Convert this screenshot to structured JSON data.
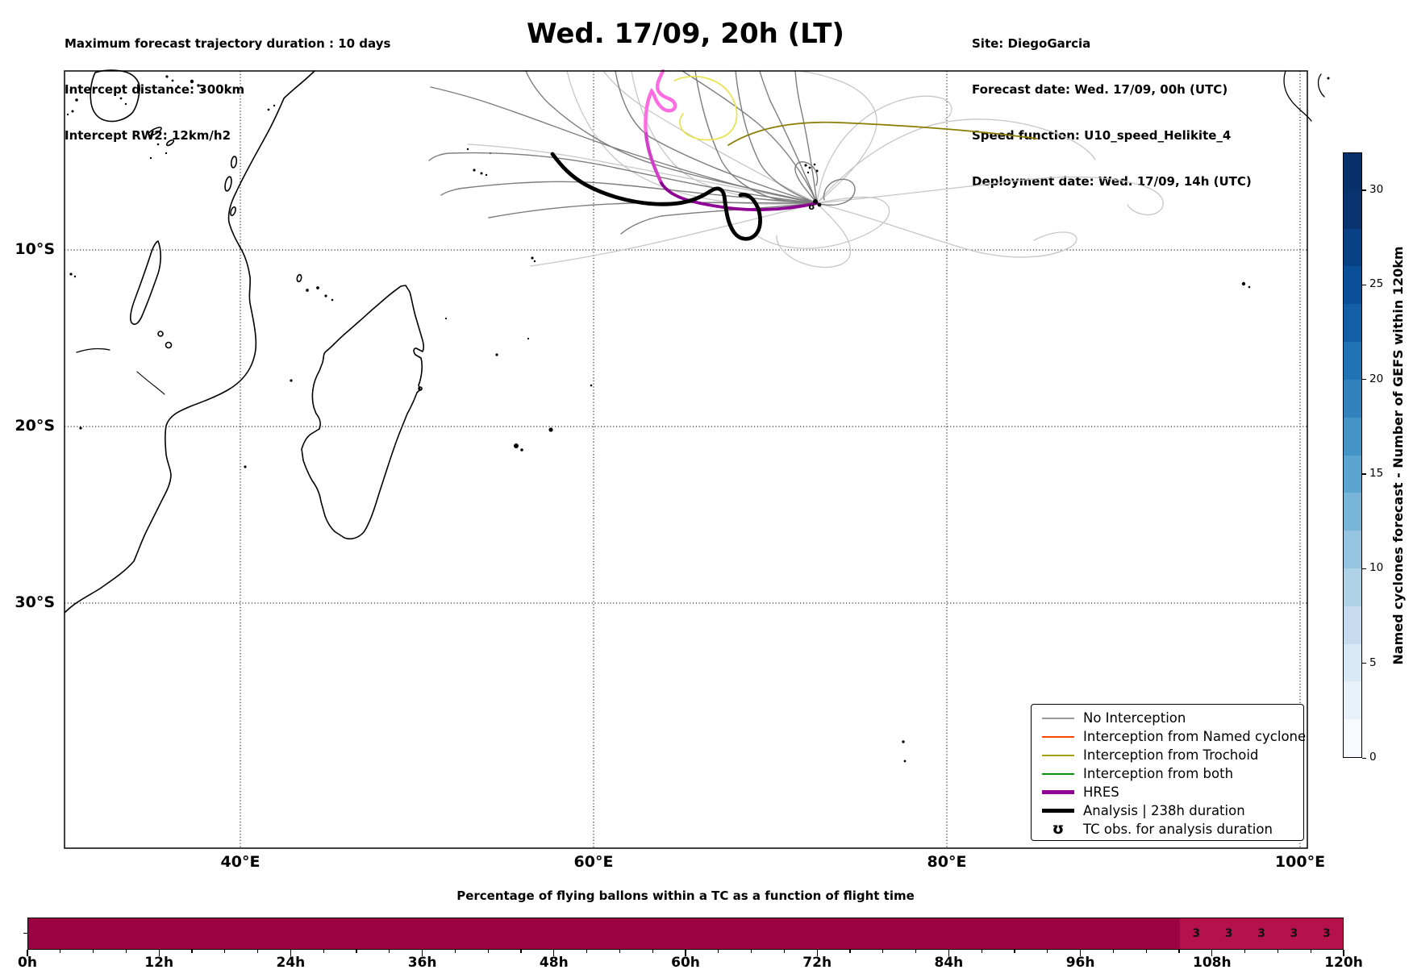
{
  "header": {
    "left_lines": [
      "Maximum forecast trajectory duration : 10 days",
      "Intercept distance: 300km",
      "Intercept RW2: 12km/h2"
    ],
    "title": "Wed. 17/09, 20h (LT)",
    "right_lines": [
      "Site: DiegoGarcia",
      "Forecast date: Wed. 17/09, 00h (UTC)",
      "Speed function: U10_speed_Helikite_4",
      "Deployment date: Wed. 17/09, 14h (UTC)"
    ]
  },
  "map": {
    "x_tick_labels": [
      "40°E",
      "60°E",
      "80°E",
      "100°E"
    ],
    "y_tick_labels": [
      "10°S",
      "20°S",
      "30°S"
    ],
    "legend": {
      "items": [
        {
          "label": "No Interception",
          "color": "#999999",
          "style": "thin"
        },
        {
          "label": "Interception from Named cyclone",
          "color": "#ff4500",
          "style": "thin"
        },
        {
          "label": "Interception from Trochoid",
          "color": "#a0a000",
          "style": "thin"
        },
        {
          "label": "Interception from both",
          "color": "#0a940a",
          "style": "thin"
        },
        {
          "label": "HRES",
          "color": "#8f0094",
          "style": "thick"
        },
        {
          "label": "Analysis | 238h duration",
          "color": "#000000",
          "style": "thick"
        },
        {
          "label": "TC obs. for analysis duration",
          "color": "#000000",
          "style": "glyph",
          "glyph": "ʊ"
        }
      ]
    },
    "trajectory_colors": {
      "no_interception_dark": "#7d7d7d",
      "no_interception_light": "#c6c6c6",
      "trochoid_yellow": "#e7e44c",
      "trochoid_olive": "#8a7c00",
      "hres_early": "#ff6ce1",
      "hres_mid": "#d23fc9",
      "hres_late": "#8f0094",
      "analysis": "#000000",
      "coast": "#000000"
    }
  },
  "colorbar": {
    "label": "Named cyclones forecast - Number of GEFS within 120km",
    "ticks": [
      0,
      5,
      10,
      15,
      20,
      25,
      30
    ],
    "vmin": 0,
    "vmax": 32,
    "segment_colors": [
      "#f7fbff",
      "#e8f1fa",
      "#d9e8f5",
      "#c6dbef",
      "#b0d2e7",
      "#94c4df",
      "#78b5d9",
      "#5da5d1",
      "#4594c7",
      "#3282be",
      "#2272b6",
      "#135fa7",
      "#0a4f97",
      "#084185",
      "#08336f",
      "#08306b"
    ]
  },
  "bottom_chart": {
    "title": "Percentage of flying ballons within a TC as a function of flight time",
    "tick_labels": [
      "0h",
      "12h",
      "24h",
      "36h",
      "48h",
      "60h",
      "72h",
      "84h",
      "96h",
      "108h",
      "120h"
    ],
    "bar_color": "#9c0343",
    "highlight_color": "#b5124c",
    "cell_values": [
      "3",
      "3",
      "3",
      "3",
      "3"
    ],
    "cell_start_hour": 105,
    "cell_width_hours": 3,
    "total_hours": 120
  },
  "chart_data": [
    {
      "type": "line",
      "title": "Wed. 17/09, 20h (LT)",
      "description": "Map of balloon/cyclone forecast trajectories over the western Indian Ocean; ensemble trajectories converge at Diego Garcia (~72°E, 7°S) and fan out north-west; thick black Analysis track runs from ~57.5°E,4.5°S eastward ending in a southward loop near 69°E,9°S; HRES track descends from ~66°E,0°S (bright pink) turning dark purple eastward to the convergence point; one light-yellow and one olive Trochoid-interception trajectory near 64-71°E,2-4°S.",
      "xlabel": "",
      "ylabel": "",
      "x_axis": {
        "tick_labels": [
          "40°E",
          "60°E",
          "80°E",
          "100°E"
        ],
        "range_deg_east": [
          30,
          100.4
        ]
      },
      "y_axis": {
        "tick_labels": [
          "10°S",
          "20°S",
          "30°S"
        ],
        "range_deg_lat": [
          -43.9,
          0.1
        ]
      },
      "grid": "dotted",
      "legend_position": "lower right",
      "legend_entries": [
        "No Interception",
        "Interception from Named cyclone",
        "Interception from Trochoid",
        "Interception from both",
        "HRES",
        "Analysis | 238h duration",
        "TC obs. for analysis duration"
      ],
      "colorbar": {
        "label": "Named cyclones forecast - Number of GEFS within 120km",
        "range": [
          0,
          32
        ],
        "ticks": [
          0,
          5,
          10,
          15,
          20,
          25,
          30
        ],
        "colormap": "Blues",
        "n_segments": 16
      }
    },
    {
      "type": "heatmap",
      "title": "Percentage of flying ballons within a TC as a function of flight time",
      "xlabel_ticks": [
        "0h",
        "12h",
        "24h",
        "36h",
        "48h",
        "60h",
        "72h",
        "84h",
        "96h",
        "108h",
        "120h"
      ],
      "bin_hours": 3,
      "x_range_hours": [
        0,
        120
      ],
      "values": [
        0,
        0,
        0,
        0,
        0,
        0,
        0,
        0,
        0,
        0,
        0,
        0,
        0,
        0,
        0,
        0,
        0,
        0,
        0,
        0,
        0,
        0,
        0,
        0,
        0,
        0,
        0,
        0,
        0,
        0,
        0,
        0,
        0,
        0,
        0,
        3,
        3,
        3,
        3,
        3
      ],
      "labeled_bins_start_hour": 105,
      "labeled_bin_values": [
        3,
        3,
        3,
        3,
        3
      ]
    }
  ]
}
